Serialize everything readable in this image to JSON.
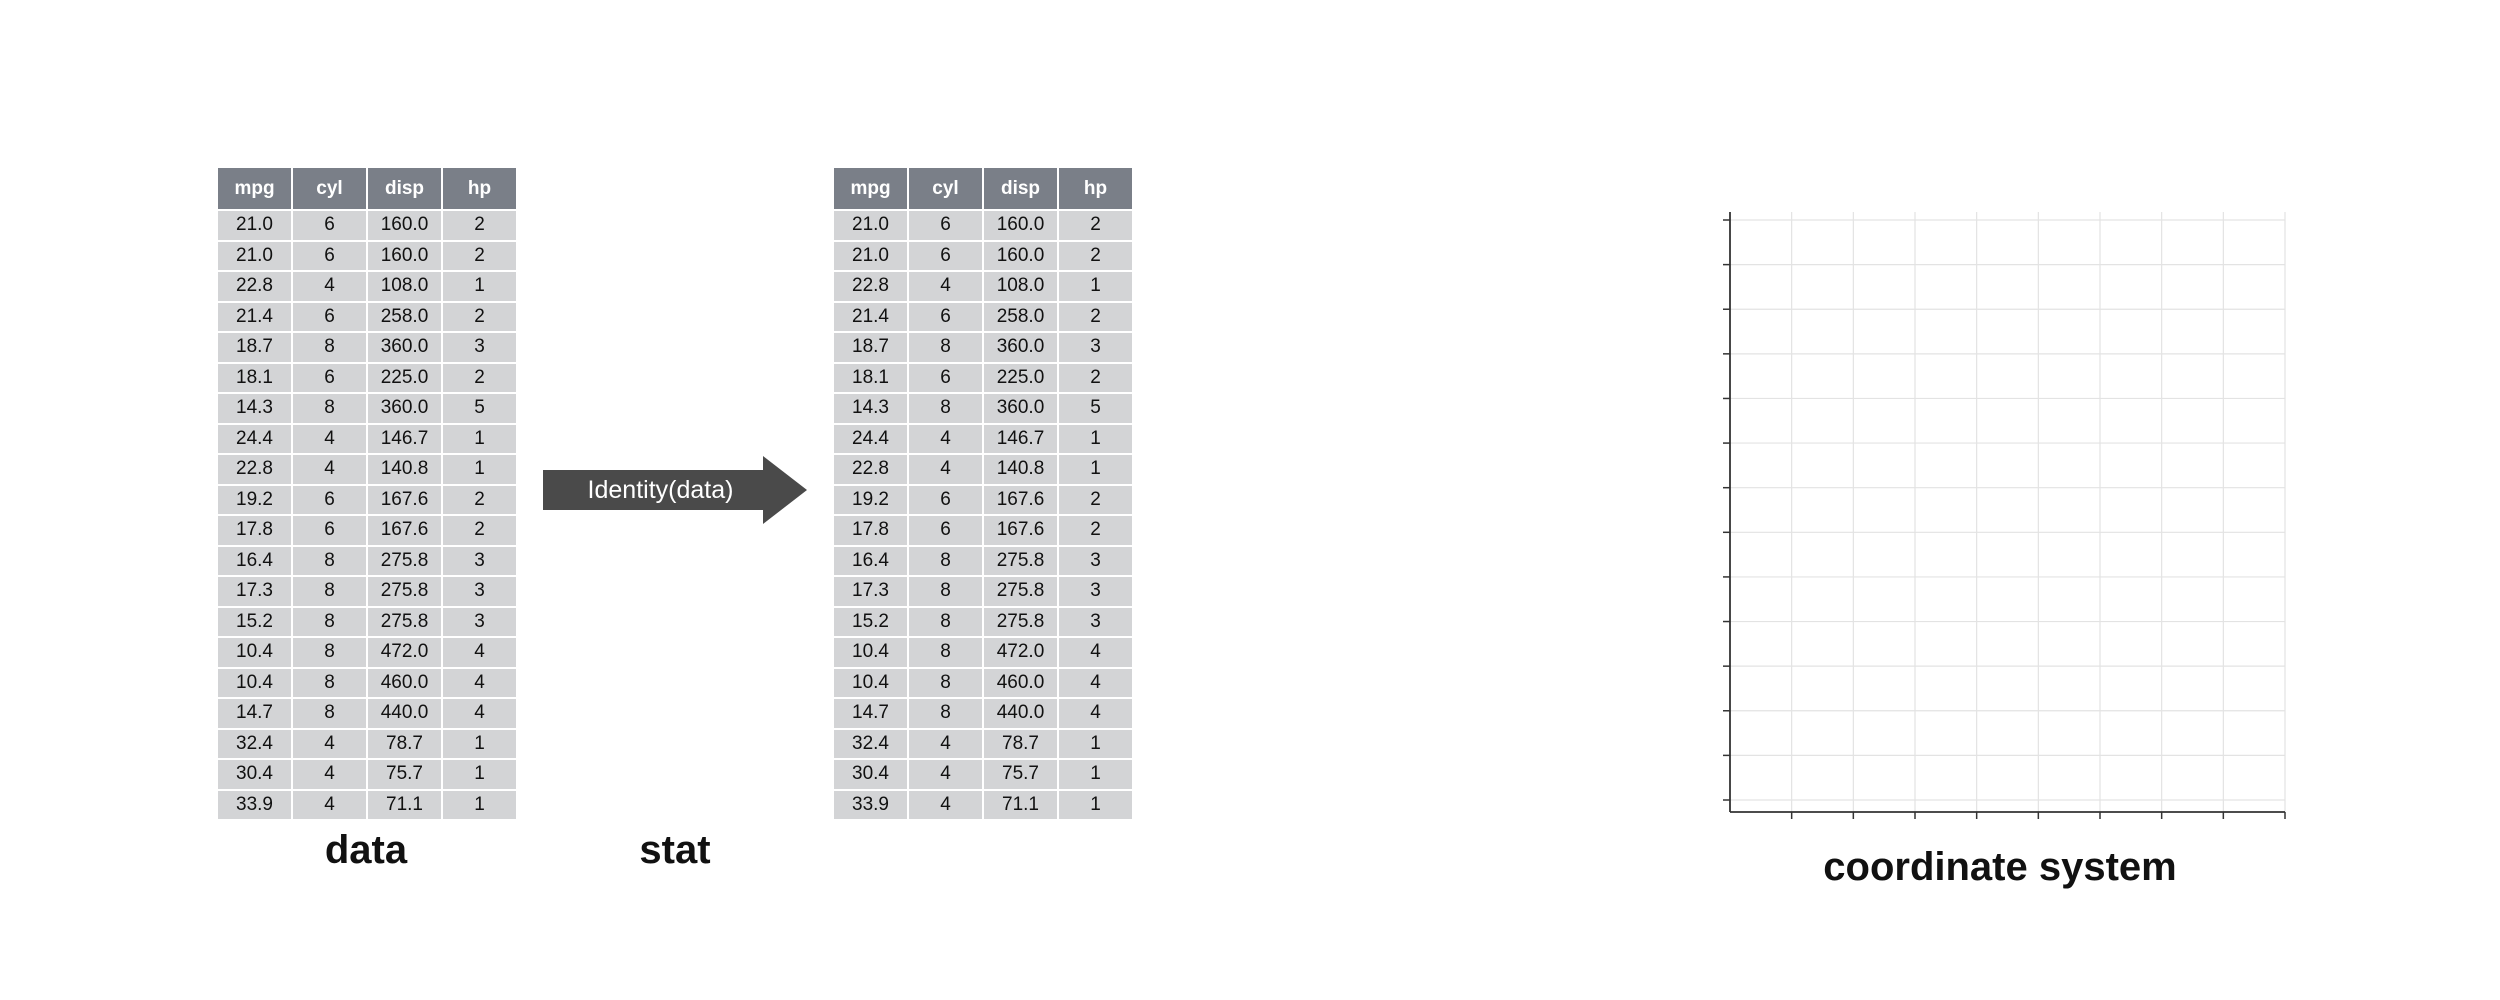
{
  "table": {
    "columns": [
      "mpg",
      "cyl",
      "disp",
      "hp"
    ],
    "rows": [
      [
        "21.0",
        "6",
        "160.0",
        "2"
      ],
      [
        "21.0",
        "6",
        "160.0",
        "2"
      ],
      [
        "22.8",
        "4",
        "108.0",
        "1"
      ],
      [
        "21.4",
        "6",
        "258.0",
        "2"
      ],
      [
        "18.7",
        "8",
        "360.0",
        "3"
      ],
      [
        "18.1",
        "6",
        "225.0",
        "2"
      ],
      [
        "14.3",
        "8",
        "360.0",
        "5"
      ],
      [
        "24.4",
        "4",
        "146.7",
        "1"
      ],
      [
        "22.8",
        "4",
        "140.8",
        "1"
      ],
      [
        "19.2",
        "6",
        "167.6",
        "2"
      ],
      [
        "17.8",
        "6",
        "167.6",
        "2"
      ],
      [
        "16.4",
        "8",
        "275.8",
        "3"
      ],
      [
        "17.3",
        "8",
        "275.8",
        "3"
      ],
      [
        "15.2",
        "8",
        "275.8",
        "3"
      ],
      [
        "10.4",
        "8",
        "472.0",
        "4"
      ],
      [
        "10.4",
        "8",
        "460.0",
        "4"
      ],
      [
        "14.7",
        "8",
        "440.0",
        "4"
      ],
      [
        "32.4",
        "4",
        "78.7",
        "1"
      ],
      [
        "30.4",
        "4",
        "75.7",
        "1"
      ],
      [
        "33.9",
        "4",
        "71.1",
        "1"
      ]
    ]
  },
  "arrow": {
    "label": "Identity(data)",
    "color": "#4a4a4a"
  },
  "captions": {
    "data": "data",
    "stat": "stat",
    "coord": "coordinate system"
  },
  "colors": {
    "header_bg": "#7a7f88",
    "cell_bg": "#d3d4d6",
    "grid": "#e3e3e3",
    "axis": "#333333"
  },
  "coord_grid": {
    "vertical_lines": 9,
    "horizontal_lines": 13
  }
}
